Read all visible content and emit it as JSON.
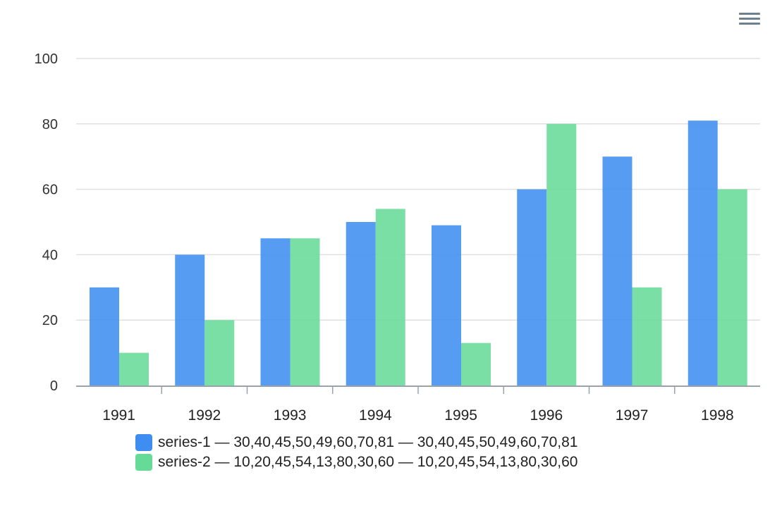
{
  "chart_data": {
    "type": "bar",
    "categories": [
      "1991",
      "1992",
      "1993",
      "1994",
      "1995",
      "1996",
      "1997",
      "1998"
    ],
    "series": [
      {
        "name": "series-1",
        "values": [
          30,
          40,
          45,
          50,
          49,
          60,
          70,
          81
        ],
        "color": "#3d8ef0"
      },
      {
        "name": "series-2",
        "values": [
          10,
          20,
          45,
          54,
          13,
          80,
          30,
          60
        ],
        "color": "#66db98"
      }
    ],
    "yticks": [
      "0",
      "20",
      "40",
      "60",
      "80",
      "100"
    ],
    "ylim": [
      0,
      100
    ],
    "grid": true,
    "legend_position": "bottom"
  },
  "legend": {
    "items": [
      {
        "label": "series-1 — 30,40,45,50,49,60,70,81 — 30,40,45,50,49,60,70,81",
        "color": "#3d8ef0"
      },
      {
        "label": "series-2 — 10,20,45,54,13,80,30,60 — 10,20,45,54,13,80,30,60",
        "color": "#66db98"
      }
    ]
  },
  "toolbar": {
    "menu_icon": "hamburger-menu-icon"
  }
}
